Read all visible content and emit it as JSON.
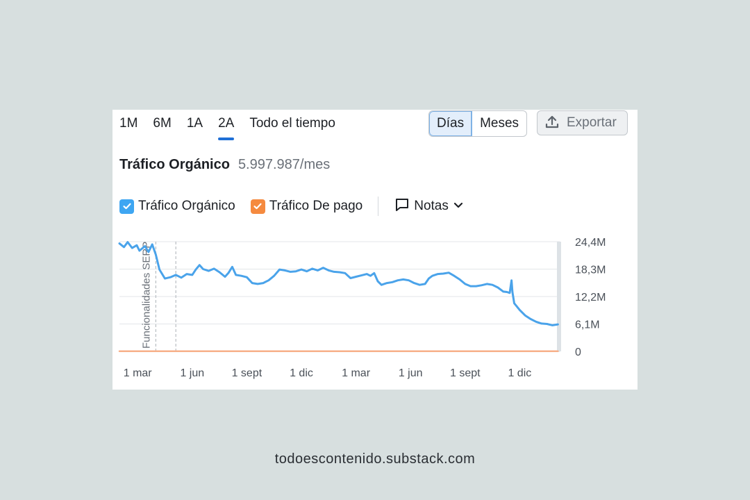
{
  "range_tabs": [
    "1M",
    "6M",
    "1A",
    "2A",
    "Todo el tiempo"
  ],
  "active_range": "2A",
  "granularity": {
    "options": [
      "Días",
      "Meses"
    ],
    "selected": "Días"
  },
  "export_label": "Exportar",
  "title": "Tráfico Orgánico",
  "metric_value": "5.997.987/mes",
  "legend": [
    {
      "label": "Tráfico Orgánico",
      "color": "#3ea6f2",
      "checked": true
    },
    {
      "label": "Tráfico De pago",
      "color": "#f58a3f",
      "checked": true
    }
  ],
  "notes_label": "Notas",
  "footer": "todoescontenido.substack.com",
  "colors": {
    "organic_line": "#4aa3ea",
    "paid_line": "#f7b089",
    "grid": "#e3e6e9",
    "accent": "#1f6fd6"
  },
  "chart_data": {
    "type": "line",
    "y_ticks": [
      "24,4M",
      "18,3M",
      "12,2M",
      "6,1M",
      "0"
    ],
    "y_tick_values": [
      24.4,
      18.3,
      12.2,
      6.1,
      0
    ],
    "ylim": [
      0,
      24.4
    ],
    "x_tick_labels": [
      "1 mar",
      "1 jun",
      "1 sept",
      "1 dic",
      "1 mar",
      "1 jun",
      "1 sept",
      "1 dic"
    ],
    "xlim": [
      0,
      24.2
    ],
    "x_tick_positions": [
      1.0,
      4.0,
      7.0,
      10.0,
      13.0,
      16.0,
      19.0,
      22.0
    ],
    "annotation": {
      "label": "Funcionalidades SERP",
      "x_positions": [
        2.0,
        3.1
      ]
    },
    "series": [
      {
        "name": "Tráfico Orgánico",
        "points": [
          [
            0.0,
            24.0
          ],
          [
            0.25,
            23.2
          ],
          [
            0.45,
            24.3
          ],
          [
            0.7,
            23.0
          ],
          [
            0.95,
            23.6
          ],
          [
            1.1,
            22.4
          ],
          [
            1.4,
            23.4
          ],
          [
            1.6,
            22.1
          ],
          [
            1.8,
            23.8
          ],
          [
            2.0,
            21.5
          ],
          [
            2.2,
            18.2
          ],
          [
            2.5,
            16.2
          ],
          [
            2.8,
            16.5
          ],
          [
            3.1,
            17.0
          ],
          [
            3.4,
            16.4
          ],
          [
            3.7,
            17.2
          ],
          [
            4.0,
            17.0
          ],
          [
            4.2,
            18.2
          ],
          [
            4.4,
            19.2
          ],
          [
            4.6,
            18.3
          ],
          [
            4.9,
            17.9
          ],
          [
            5.2,
            18.4
          ],
          [
            5.5,
            17.6
          ],
          [
            5.8,
            16.6
          ],
          [
            6.0,
            17.5
          ],
          [
            6.2,
            18.8
          ],
          [
            6.4,
            17.0
          ],
          [
            6.7,
            16.8
          ],
          [
            7.0,
            16.5
          ],
          [
            7.3,
            15.2
          ],
          [
            7.6,
            15.0
          ],
          [
            7.9,
            15.2
          ],
          [
            8.2,
            15.8
          ],
          [
            8.5,
            16.8
          ],
          [
            8.8,
            18.2
          ],
          [
            9.1,
            18.0
          ],
          [
            9.4,
            17.7
          ],
          [
            9.7,
            17.8
          ],
          [
            10.0,
            18.2
          ],
          [
            10.3,
            17.8
          ],
          [
            10.6,
            18.4
          ],
          [
            10.9,
            18.0
          ],
          [
            11.2,
            18.6
          ],
          [
            11.5,
            18.0
          ],
          [
            11.8,
            17.7
          ],
          [
            12.1,
            17.6
          ],
          [
            12.4,
            17.4
          ],
          [
            12.7,
            16.3
          ],
          [
            13.0,
            16.6
          ],
          [
            13.3,
            16.9
          ],
          [
            13.6,
            17.2
          ],
          [
            13.8,
            16.8
          ],
          [
            14.0,
            17.4
          ],
          [
            14.2,
            15.6
          ],
          [
            14.4,
            14.8
          ],
          [
            14.7,
            15.2
          ],
          [
            15.0,
            15.4
          ],
          [
            15.3,
            15.8
          ],
          [
            15.6,
            16.0
          ],
          [
            15.9,
            15.8
          ],
          [
            16.2,
            15.2
          ],
          [
            16.5,
            14.8
          ],
          [
            16.8,
            15.0
          ],
          [
            17.0,
            16.2
          ],
          [
            17.2,
            16.8
          ],
          [
            17.5,
            17.2
          ],
          [
            17.8,
            17.3
          ],
          [
            18.1,
            17.5
          ],
          [
            18.4,
            16.8
          ],
          [
            18.7,
            16.0
          ],
          [
            19.0,
            15.0
          ],
          [
            19.3,
            14.5
          ],
          [
            19.6,
            14.5
          ],
          [
            19.9,
            14.7
          ],
          [
            20.2,
            15.0
          ],
          [
            20.5,
            14.8
          ],
          [
            20.8,
            14.2
          ],
          [
            21.1,
            13.3
          ],
          [
            21.3,
            13.2
          ],
          [
            21.45,
            13.0
          ],
          [
            21.55,
            15.8
          ],
          [
            21.6,
            13.2
          ],
          [
            21.7,
            10.7
          ],
          [
            22.0,
            9.2
          ],
          [
            22.3,
            8.0
          ],
          [
            22.6,
            7.2
          ],
          [
            22.9,
            6.6
          ],
          [
            23.2,
            6.2
          ],
          [
            23.5,
            6.1
          ],
          [
            23.8,
            5.8
          ],
          [
            24.1,
            6.0
          ]
        ]
      },
      {
        "name": "Tráfico De pago",
        "points": [
          [
            0.0,
            0.05
          ],
          [
            24.1,
            0.05
          ]
        ]
      }
    ]
  }
}
